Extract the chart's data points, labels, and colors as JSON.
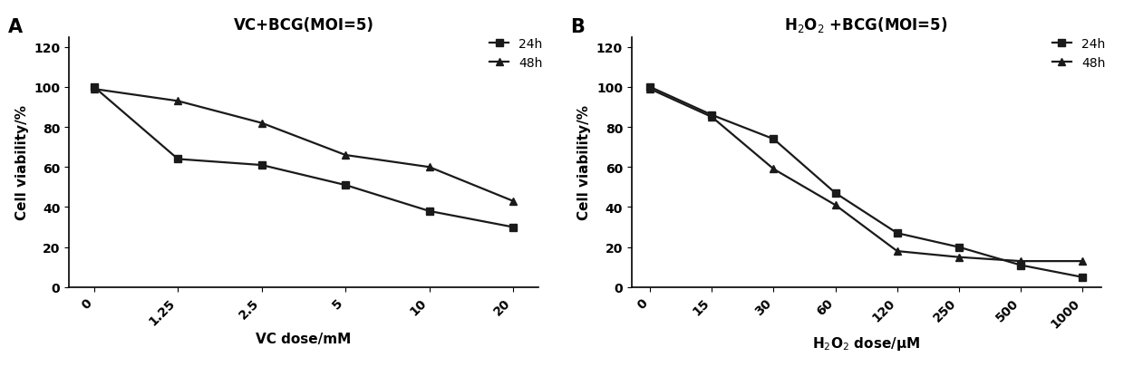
{
  "panel_A": {
    "title": "VC+BCG(MOI=5)",
    "xlabel": "VC dose/mM",
    "ylabel": "Cell viability/%",
    "x_tick_labels": [
      "0",
      "1.25",
      "2.5",
      "5",
      "10",
      "20"
    ],
    "ylim": [
      0,
      125
    ],
    "y_ticks": [
      0,
      20,
      40,
      60,
      80,
      100,
      120
    ],
    "series": {
      "24h": {
        "y": [
          100,
          64,
          61,
          51,
          38,
          30
        ],
        "marker": "s",
        "label": "24h"
      },
      "48h": {
        "y": [
          99,
          93,
          82,
          66,
          60,
          43
        ],
        "marker": "^",
        "label": "48h"
      }
    }
  },
  "panel_B": {
    "title": "H$_2$O$_2$ +BCG(MOI=5)",
    "xlabel": "H$_2$O$_2$ dose/μM",
    "ylabel": "Cell viability/%",
    "x_tick_labels": [
      "0",
      "15",
      "30",
      "60",
      "120",
      "250",
      "500",
      "1000"
    ],
    "ylim": [
      0,
      125
    ],
    "y_ticks": [
      0,
      20,
      40,
      60,
      80,
      100,
      120
    ],
    "series": {
      "24h": {
        "y": [
          100,
          86,
          74,
          47,
          27,
          20,
          11,
          5
        ],
        "marker": "s",
        "label": "24h"
      },
      "48h": {
        "y": [
          99,
          85,
          59,
          41,
          18,
          15,
          13,
          13
        ],
        "marker": "^",
        "label": "48h"
      }
    }
  },
  "line_color": "#1a1a1a",
  "marker_size": 6,
  "line_width": 1.6,
  "font_size": 10,
  "label_font_size": 11,
  "title_font_size": 12,
  "panel_label_font_size": 15
}
